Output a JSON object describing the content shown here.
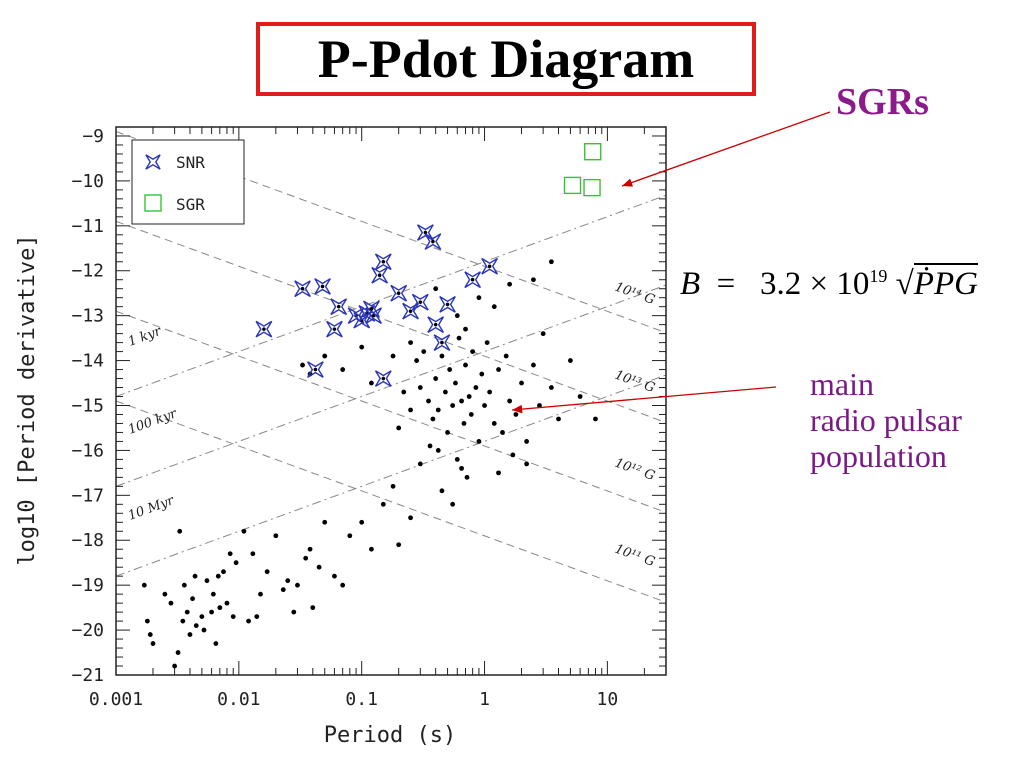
{
  "slide": {
    "title": "P-Pdot Diagram",
    "sgr_callout": "SGRs",
    "formula": {
      "lhs": "B",
      "coef": "3.2",
      "times": "×",
      "base": "10",
      "exp": "19",
      "radicand": "ṖPG"
    },
    "main_label": [
      "main",
      "radio pulsar",
      "population"
    ]
  },
  "colors": {
    "title_border": "#e21b1b",
    "callout_purple": "#8b1a8b",
    "label_purple": "#7a1a86",
    "snr_blue": "#2a35b8",
    "sgr_green": "#35c435",
    "arrow_red": "#cc0000"
  },
  "chart_data": {
    "type": "scatter",
    "xscale": "log",
    "xlim": [
      0.001,
      30
    ],
    "ylim": [
      -21,
      -8.8
    ],
    "xlabel": "Period (s)",
    "ylabel": "log10 [Period derivative]",
    "x_ticks": [
      "0.001",
      "0.01",
      "0.1",
      "1",
      "10"
    ],
    "y_ticks": [
      "−9",
      "−10",
      "−11",
      "−12",
      "−13",
      "−14",
      "−15",
      "−16",
      "−17",
      "−18",
      "−19",
      "−20",
      "−21"
    ],
    "legend": {
      "position": "top-left",
      "entries": [
        "SNR",
        "SGR"
      ]
    },
    "lines": [
      {
        "label": "1 kyr",
        "type": "age",
        "x": [
          0.001,
          30
        ],
        "y": [
          -14.8,
          -10.32
        ]
      },
      {
        "label": "100 kyr",
        "type": "age",
        "x": [
          0.001,
          30
        ],
        "y": [
          -16.8,
          -12.32
        ]
      },
      {
        "label": "10 Myr",
        "type": "age",
        "x": [
          0.001,
          30
        ],
        "y": [
          -18.8,
          -14.32
        ]
      },
      {
        "label": "10¹⁴ G",
        "type": "field",
        "x": [
          0.001,
          30
        ],
        "y": [
          -8.9,
          -13.38
        ]
      },
      {
        "label": "10¹³ G",
        "type": "field",
        "x": [
          0.001,
          30
        ],
        "y": [
          -10.9,
          -15.38
        ]
      },
      {
        "label": "10¹² G",
        "type": "field",
        "x": [
          0.001,
          30
        ],
        "y": [
          -12.9,
          -17.38
        ]
      },
      {
        "label": "10¹¹ G",
        "type": "field",
        "x": [
          0.001,
          30
        ],
        "y": [
          -14.9,
          -19.38
        ]
      }
    ],
    "series": [
      {
        "name": "SNR",
        "marker": "star",
        "points": [
          [
            0.033,
            -12.4
          ],
          [
            0.048,
            -12.35
          ],
          [
            0.065,
            -12.8
          ],
          [
            0.06,
            -13.3
          ],
          [
            0.09,
            -13.0
          ],
          [
            0.1,
            -13.1
          ],
          [
            0.11,
            -12.95
          ],
          [
            0.125,
            -13.0
          ],
          [
            0.14,
            -12.1
          ],
          [
            0.15,
            -11.8
          ],
          [
            0.2,
            -12.5
          ],
          [
            0.25,
            -12.9
          ],
          [
            0.3,
            -12.7
          ],
          [
            0.33,
            -11.15
          ],
          [
            0.38,
            -11.35
          ],
          [
            0.4,
            -13.2
          ],
          [
            0.45,
            -13.6
          ],
          [
            0.5,
            -12.75
          ],
          [
            0.8,
            -12.2
          ],
          [
            1.1,
            -11.9
          ],
          [
            0.042,
            -14.2
          ],
          [
            0.15,
            -14.4
          ],
          [
            0.016,
            -13.3
          ],
          [
            0.12,
            -12.85
          ]
        ]
      },
      {
        "name": "SGR",
        "marker": "square",
        "points": [
          [
            5.2,
            -10.1
          ],
          [
            7.5,
            -10.15
          ],
          [
            7.6,
            -9.35
          ]
        ]
      },
      {
        "name": "radio pulsars",
        "marker": "dot",
        "points": [
          [
            0.0017,
            -19.0
          ],
          [
            0.0018,
            -19.8
          ],
          [
            0.0019,
            -20.1
          ],
          [
            0.002,
            -20.3
          ],
          [
            0.0025,
            -19.2
          ],
          [
            0.0028,
            -19.4
          ],
          [
            0.003,
            -20.8
          ],
          [
            0.0032,
            -20.5
          ],
          [
            0.0035,
            -19.8
          ],
          [
            0.0038,
            -19.6
          ],
          [
            0.004,
            -20.1
          ],
          [
            0.0042,
            -19.3
          ],
          [
            0.0045,
            -19.9
          ],
          [
            0.005,
            -19.7
          ],
          [
            0.0052,
            -20.0
          ],
          [
            0.006,
            -19.6
          ],
          [
            0.0065,
            -20.3
          ],
          [
            0.007,
            -19.5
          ],
          [
            0.008,
            -19.4
          ],
          [
            0.009,
            -19.7
          ],
          [
            0.0033,
            -17.8
          ],
          [
            0.0036,
            -19.0
          ],
          [
            0.0044,
            -18.8
          ],
          [
            0.0055,
            -18.9
          ],
          [
            0.0075,
            -18.7
          ],
          [
            0.0085,
            -18.3
          ],
          [
            0.0095,
            -18.5
          ],
          [
            0.011,
            -17.8
          ],
          [
            0.013,
            -18.3
          ],
          [
            0.015,
            -19.2
          ],
          [
            0.017,
            -18.7
          ],
          [
            0.02,
            -17.9
          ],
          [
            0.023,
            -19.1
          ],
          [
            0.025,
            -18.9
          ],
          [
            0.03,
            -19.0
          ],
          [
            0.035,
            -18.4
          ],
          [
            0.04,
            -19.5
          ],
          [
            0.045,
            -18.6
          ],
          [
            0.05,
            -17.6
          ],
          [
            0.06,
            -18.8
          ],
          [
            0.07,
            -19.0
          ],
          [
            0.08,
            -17.9
          ],
          [
            0.1,
            -17.6
          ],
          [
            0.12,
            -18.2
          ],
          [
            0.15,
            -17.2
          ],
          [
            0.18,
            -16.8
          ],
          [
            0.2,
            -18.1
          ],
          [
            0.25,
            -17.5
          ],
          [
            0.012,
            -19.8
          ],
          [
            0.014,
            -19.7
          ],
          [
            0.0062,
            -19.2
          ],
          [
            0.0068,
            -18.8
          ],
          [
            0.038,
            -18.2
          ],
          [
            0.028,
            -19.6
          ],
          [
            0.033,
            -14.1
          ],
          [
            0.038,
            -14.3
          ],
          [
            0.05,
            -13.9
          ],
          [
            0.07,
            -14.2
          ],
          [
            0.1,
            -13.7
          ],
          [
            0.12,
            -14.5
          ],
          [
            0.18,
            -13.9
          ],
          [
            0.25,
            -13.6
          ],
          [
            0.28,
            -14.0
          ],
          [
            0.3,
            -14.6
          ],
          [
            0.32,
            -13.8
          ],
          [
            0.35,
            -14.9
          ],
          [
            0.38,
            -15.3
          ],
          [
            0.4,
            -14.4
          ],
          [
            0.42,
            -15.1
          ],
          [
            0.45,
            -13.9
          ],
          [
            0.48,
            -14.7
          ],
          [
            0.5,
            -15.6
          ],
          [
            0.52,
            -14.2
          ],
          [
            0.55,
            -15.0
          ],
          [
            0.58,
            -14.5
          ],
          [
            0.6,
            -16.2
          ],
          [
            0.62,
            -13.5
          ],
          [
            0.65,
            -14.9
          ],
          [
            0.68,
            -15.4
          ],
          [
            0.7,
            -14.1
          ],
          [
            0.72,
            -16.6
          ],
          [
            0.75,
            -14.8
          ],
          [
            0.78,
            -15.2
          ],
          [
            0.8,
            -13.8
          ],
          [
            0.85,
            -14.6
          ],
          [
            0.9,
            -15.8
          ],
          [
            0.95,
            -14.3
          ],
          [
            1.0,
            -15.0
          ],
          [
            1.05,
            -13.6
          ],
          [
            1.1,
            -14.7
          ],
          [
            1.2,
            -15.4
          ],
          [
            1.3,
            -14.2
          ],
          [
            1.4,
            -15.6
          ],
          [
            1.5,
            -13.9
          ],
          [
            1.6,
            -14.9
          ],
          [
            1.8,
            -15.2
          ],
          [
            2.0,
            -14.5
          ],
          [
            2.2,
            -15.8
          ],
          [
            2.5,
            -14.1
          ],
          [
            2.8,
            -15.0
          ],
          [
            3.0,
            -13.4
          ],
          [
            3.5,
            -14.6
          ],
          [
            4.0,
            -15.3
          ],
          [
            5.0,
            -14.0
          ],
          [
            6.0,
            -14.8
          ],
          [
            8.0,
            -15.3
          ],
          [
            0.45,
            -16.9
          ],
          [
            0.55,
            -17.2
          ],
          [
            0.65,
            -16.4
          ],
          [
            0.3,
            -16.3
          ],
          [
            0.36,
            -15.9
          ],
          [
            0.42,
            -16.0
          ],
          [
            1.2,
            -12.8
          ],
          [
            2.5,
            -12.2
          ],
          [
            3.5,
            -11.8
          ],
          [
            1.6,
            -12.3
          ],
          [
            0.9,
            -12.6
          ],
          [
            0.6,
            -13.0
          ],
          [
            0.4,
            -12.4
          ],
          [
            0.7,
            -13.3
          ],
          [
            1.3,
            -16.5
          ],
          [
            1.7,
            -16.1
          ],
          [
            2.2,
            -16.3
          ],
          [
            0.25,
            -15.1
          ],
          [
            0.22,
            -14.7
          ],
          [
            0.2,
            -15.5
          ]
        ]
      }
    ]
  }
}
